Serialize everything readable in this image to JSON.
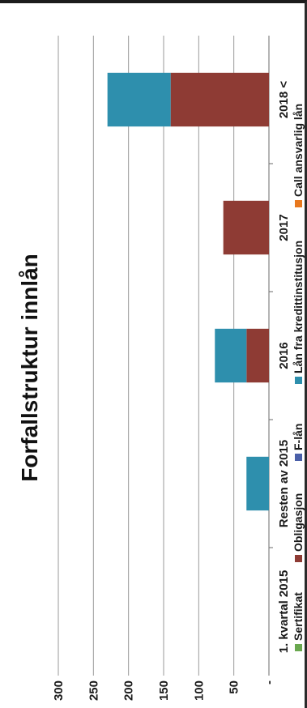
{
  "chart_data": {
    "type": "bar",
    "stacked": true,
    "title": "Forfallstruktur innlån",
    "categories": [
      "1. kvartal 2015",
      "Resten av 2015",
      "2016",
      "2017",
      "2018 <"
    ],
    "series": [
      {
        "name": "Sertifikat",
        "color": "#6aa84f",
        "values": [
          0,
          0,
          0,
          0,
          0
        ]
      },
      {
        "name": "Obligasjon",
        "color": "#8e3b34",
        "values": [
          0,
          0,
          32,
          65,
          140
        ]
      },
      {
        "name": "F-lån",
        "color": "#4a5fa8",
        "values": [
          0,
          0,
          0,
          0,
          0
        ]
      },
      {
        "name": "Lån fra kredittinstitusjon",
        "color": "#2e8fad",
        "values": [
          0,
          32,
          45,
          0,
          90
        ]
      },
      {
        "name": "Call ansvarlig lån",
        "color": "#e8781e",
        "values": [
          0,
          0,
          0,
          0,
          0
        ]
      }
    ],
    "yticks": [
      "-",
      "50",
      "100",
      "150",
      "200",
      "250",
      "300"
    ],
    "ylim": [
      0,
      300
    ],
    "grid": true,
    "legend_position": "bottom"
  }
}
